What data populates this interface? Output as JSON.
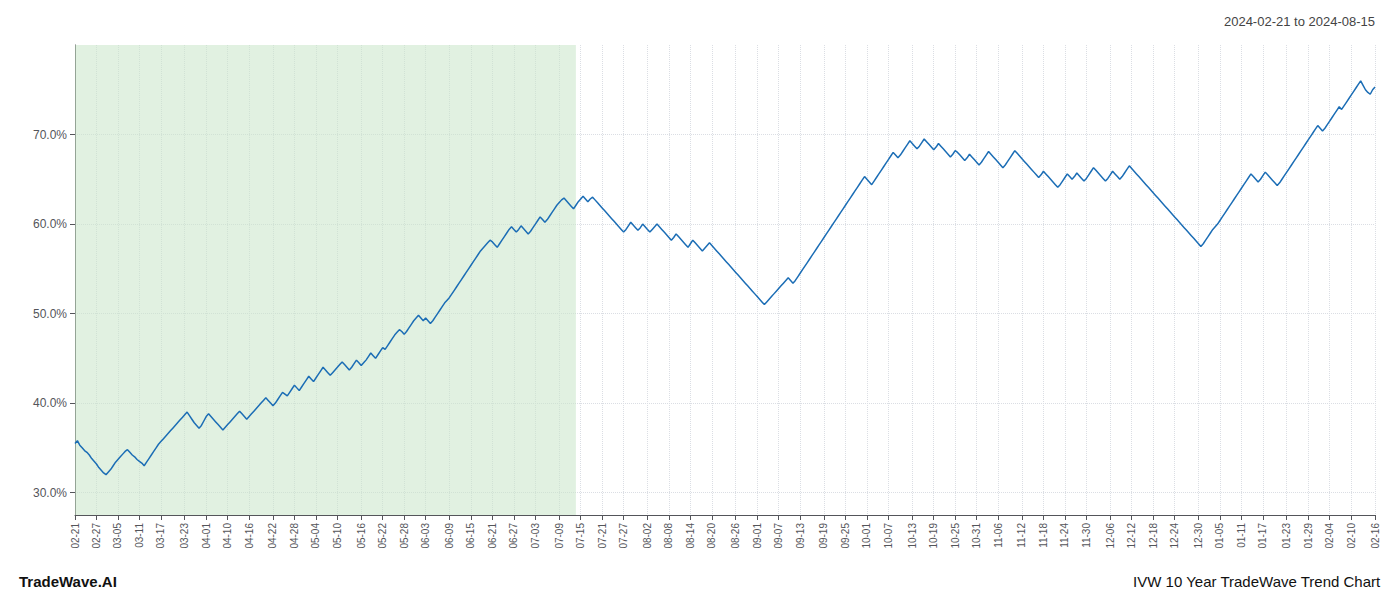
{
  "chart_data": {
    "type": "line",
    "title": "IVW 10 Year TradeWave Trend Chart",
    "subtitle": "2024-02-21 to 2024-08-15",
    "annotations": [
      "TradeWave.AI"
    ],
    "color": "#1b6db5",
    "grid": true,
    "ylim": [
      27.5,
      80.0
    ],
    "yticks": [
      {
        "value": 30.0,
        "label": "30.0%"
      },
      {
        "value": 40.0,
        "label": "40.0%"
      },
      {
        "value": 50.0,
        "label": "50.0%"
      },
      {
        "value": 60.0,
        "label": "60.0%"
      },
      {
        "value": 70.0,
        "label": "70.0%"
      }
    ],
    "categories": [
      "02-21",
      null,
      null,
      null,
      null,
      null,
      null,
      null,
      null,
      "02-27",
      null,
      null,
      null,
      null,
      null,
      null,
      null,
      null,
      "03-05",
      null,
      null,
      null,
      null,
      null,
      null,
      null,
      null,
      "03-11",
      null,
      null,
      null,
      null,
      null,
      null,
      null,
      null,
      "03-17",
      null,
      null,
      null,
      null,
      null,
      null,
      null,
      null,
      null,
      "03-23",
      null,
      null,
      null,
      null,
      null,
      null,
      null,
      null,
      "04-01",
      null,
      null,
      null,
      null,
      null,
      null,
      null,
      null,
      "04-10",
      null,
      null,
      null,
      null,
      null,
      null,
      null,
      null,
      "04-16",
      null,
      null,
      null,
      null,
      null,
      null,
      null,
      null,
      null,
      "04-22",
      null,
      null,
      null,
      null,
      null,
      null,
      null,
      null,
      "04-28",
      null,
      null,
      null,
      null,
      null,
      null,
      null,
      null,
      "05-04",
      null,
      null,
      null,
      null,
      null,
      null,
      null,
      null,
      "05-10",
      null,
      null,
      null,
      null,
      null,
      null,
      null,
      null,
      null,
      "05-16",
      null,
      null,
      null,
      null,
      null,
      null,
      null,
      null,
      "05-22",
      null,
      null,
      null,
      null,
      null,
      null,
      null,
      null,
      "05-28",
      null,
      null,
      null,
      null,
      null,
      null,
      null,
      null,
      "06-03",
      null,
      null,
      null,
      null,
      null,
      null,
      null,
      null,
      null,
      "06-09",
      null,
      null,
      null,
      null,
      null,
      null,
      null,
      null,
      "06-15",
      null,
      null,
      null,
      null,
      null,
      null,
      null,
      null,
      "06-21",
      null,
      null,
      null,
      null,
      null,
      null,
      null,
      null,
      "06-27",
      null,
      null,
      null,
      null,
      null,
      null,
      null,
      null,
      "07-03",
      null,
      null,
      null,
      null,
      null,
      null,
      null,
      null,
      null,
      "07-09",
      null,
      null,
      null,
      null,
      null,
      null,
      null,
      null,
      "07-15",
      null,
      null,
      null,
      null,
      null,
      null,
      null,
      null,
      "07-21",
      null,
      null,
      null,
      null,
      null,
      null,
      null,
      null,
      "07-27",
      null,
      null,
      null,
      null,
      null,
      null,
      null,
      null,
      null,
      "08-02",
      null,
      null,
      null,
      null,
      null,
      null,
      null,
      null,
      "08-08",
      null,
      null,
      null,
      null,
      null,
      null,
      null,
      null,
      "08-14",
      null,
      null,
      null,
      null,
      null,
      null,
      null,
      null,
      "08-20",
      null,
      null,
      null,
      null,
      null,
      null,
      null,
      null,
      null,
      "08-26",
      null,
      null,
      null,
      null,
      null,
      null,
      null,
      null,
      "09-01",
      null,
      null,
      null,
      null,
      null,
      null,
      null,
      null,
      "09-07",
      null,
      null,
      null,
      null,
      null,
      null,
      null,
      null,
      "09-13",
      null,
      null,
      null,
      null,
      null,
      null,
      null,
      null,
      null,
      "09-19",
      null,
      null,
      null,
      null,
      null,
      null,
      null,
      null,
      "09-25",
      null,
      null,
      null,
      null,
      null,
      null,
      null,
      null,
      "10-01",
      null,
      null,
      null,
      null,
      null,
      null,
      null,
      null,
      "10-07",
      null,
      null,
      null,
      null,
      null,
      null,
      null,
      null,
      null,
      "10-13",
      null,
      null,
      null,
      null,
      null,
      null,
      null,
      null,
      "10-19",
      null,
      null,
      null,
      null,
      null,
      null,
      null,
      null,
      "10-25",
      null,
      null,
      null,
      null,
      null,
      null,
      null,
      null,
      "10-31",
      null,
      null,
      null,
      null,
      null,
      null,
      null,
      null,
      "11-06",
      null,
      null,
      null,
      null,
      null,
      null,
      null,
      null,
      null,
      "11-12",
      null,
      null,
      null,
      null,
      null,
      null,
      null,
      null,
      "11-18",
      null,
      null,
      null,
      null,
      null,
      null,
      null,
      null,
      "11-24",
      null,
      null,
      null,
      null,
      null,
      null,
      null,
      null,
      "11-30",
      null,
      null,
      null,
      null,
      null,
      null,
      null,
      null,
      null,
      "12-06",
      null,
      null,
      null,
      null,
      null,
      null,
      null,
      null,
      "12-12",
      null,
      null,
      null,
      null,
      null,
      null,
      null,
      null,
      "12-18",
      null,
      null,
      null,
      null,
      null,
      null,
      null,
      null,
      "12-24",
      null,
      null,
      null,
      null,
      null,
      null,
      null,
      null,
      null,
      "12-30",
      null,
      null,
      null,
      null,
      null,
      null,
      null,
      null,
      "01-05",
      null,
      null,
      null,
      null,
      null,
      null,
      null,
      null,
      "01-11",
      null,
      null,
      null,
      null,
      null,
      null,
      null,
      null,
      "01-17",
      null,
      null,
      null,
      null,
      null,
      null,
      null,
      null,
      null,
      "01-23",
      null,
      null,
      null,
      null,
      null,
      null,
      null,
      null,
      "01-29",
      null,
      null,
      null,
      null,
      null,
      null,
      null,
      null,
      "02-04",
      null,
      null,
      null,
      null,
      null,
      null,
      null,
      null,
      "02-10",
      null,
      null,
      null,
      null,
      null,
      null,
      null,
      null,
      null,
      "02-16"
    ],
    "values": [
      35.5,
      35.8,
      35.3,
      35.0,
      34.7,
      34.5,
      34.2,
      33.8,
      33.5,
      33.2,
      32.8,
      32.5,
      32.2,
      32.0,
      32.3,
      32.6,
      33.0,
      33.4,
      33.7,
      34.0,
      34.3,
      34.6,
      34.8,
      34.5,
      34.2,
      34.0,
      33.7,
      33.5,
      33.3,
      33.0,
      33.4,
      33.8,
      34.2,
      34.6,
      35.0,
      35.4,
      35.7,
      36.0,
      36.3,
      36.6,
      36.9,
      37.2,
      37.5,
      37.8,
      38.1,
      38.4,
      38.7,
      39.0,
      38.6,
      38.2,
      37.8,
      37.5,
      37.2,
      37.5,
      38.0,
      38.5,
      38.8,
      38.5,
      38.2,
      37.9,
      37.6,
      37.3,
      37.0,
      37.3,
      37.6,
      37.9,
      38.2,
      38.5,
      38.8,
      39.1,
      38.8,
      38.5,
      38.2,
      38.5,
      38.8,
      39.1,
      39.4,
      39.7,
      40.0,
      40.3,
      40.6,
      40.3,
      40.0,
      39.7,
      40.0,
      40.4,
      40.8,
      41.2,
      41.0,
      40.8,
      41.2,
      41.6,
      42.0,
      41.7,
      41.4,
      41.8,
      42.2,
      42.6,
      43.0,
      42.7,
      42.4,
      42.8,
      43.2,
      43.6,
      44.0,
      43.7,
      43.4,
      43.1,
      43.4,
      43.7,
      44.0,
      44.3,
      44.6,
      44.3,
      44.0,
      43.7,
      44.0,
      44.4,
      44.8,
      44.5,
      44.2,
      44.5,
      44.8,
      45.2,
      45.6,
      45.3,
      45.0,
      45.4,
      45.8,
      46.2,
      46.0,
      46.4,
      46.8,
      47.2,
      47.6,
      47.9,
      48.2,
      48.0,
      47.7,
      48.0,
      48.4,
      48.8,
      49.2,
      49.5,
      49.8,
      49.5,
      49.2,
      49.5,
      49.2,
      48.9,
      49.2,
      49.6,
      50.0,
      50.4,
      50.8,
      51.2,
      51.5,
      51.8,
      52.2,
      52.6,
      53.0,
      53.4,
      53.8,
      54.2,
      54.6,
      55.0,
      55.4,
      55.8,
      56.2,
      56.6,
      57.0,
      57.3,
      57.6,
      57.9,
      58.2,
      58.0,
      57.7,
      57.4,
      57.8,
      58.2,
      58.6,
      59.0,
      59.4,
      59.7,
      59.4,
      59.1,
      59.4,
      59.8,
      59.5,
      59.2,
      58.9,
      59.2,
      59.6,
      60.0,
      60.4,
      60.8,
      60.5,
      60.2,
      60.5,
      60.9,
      61.3,
      61.7,
      62.1,
      62.4,
      62.7,
      62.9,
      62.6,
      62.3,
      62.0,
      61.7,
      62.1,
      62.5,
      62.8,
      63.1,
      62.8,
      62.5,
      62.8,
      63.0,
      62.7,
      62.4,
      62.1,
      61.8,
      61.5,
      61.2,
      60.9,
      60.6,
      60.3,
      60.0,
      59.7,
      59.4,
      59.1,
      59.4,
      59.8,
      60.2,
      59.9,
      59.6,
      59.3,
      59.6,
      60.0,
      59.7,
      59.4,
      59.1,
      59.4,
      59.7,
      60.0,
      59.7,
      59.4,
      59.1,
      58.8,
      58.5,
      58.2,
      58.5,
      58.9,
      58.6,
      58.3,
      58.0,
      57.7,
      57.4,
      57.8,
      58.2,
      57.9,
      57.6,
      57.3,
      57.0,
      57.3,
      57.6,
      57.9,
      57.6,
      57.3,
      57.0,
      56.7,
      56.4,
      56.1,
      55.8,
      55.5,
      55.2,
      54.9,
      54.6,
      54.3,
      54.0,
      53.7,
      53.4,
      53.1,
      52.8,
      52.5,
      52.2,
      51.9,
      51.6,
      51.3,
      51.0,
      51.3,
      51.6,
      51.9,
      52.2,
      52.5,
      52.8,
      53.1,
      53.4,
      53.7,
      54.0,
      53.7,
      53.4,
      53.7,
      54.1,
      54.5,
      54.9,
      55.3,
      55.7,
      56.1,
      56.5,
      56.9,
      57.3,
      57.7,
      58.1,
      58.5,
      58.9,
      59.3,
      59.7,
      60.1,
      60.5,
      60.9,
      61.3,
      61.7,
      62.1,
      62.5,
      62.9,
      63.3,
      63.7,
      64.1,
      64.5,
      64.9,
      65.3,
      65.0,
      64.7,
      64.4,
      64.8,
      65.2,
      65.6,
      66.0,
      66.4,
      66.8,
      67.2,
      67.6,
      68.0,
      67.7,
      67.4,
      67.7,
      68.1,
      68.5,
      68.9,
      69.3,
      69.0,
      68.7,
      68.4,
      68.7,
      69.1,
      69.5,
      69.2,
      68.9,
      68.6,
      68.3,
      68.6,
      69.0,
      68.7,
      68.4,
      68.1,
      67.8,
      67.5,
      67.8,
      68.2,
      68.0,
      67.7,
      67.4,
      67.1,
      67.4,
      67.8,
      67.5,
      67.2,
      66.9,
      66.6,
      66.9,
      67.3,
      67.7,
      68.1,
      67.8,
      67.5,
      67.2,
      66.9,
      66.6,
      66.3,
      66.6,
      67.0,
      67.4,
      67.8,
      68.2,
      67.9,
      67.6,
      67.3,
      67.0,
      66.7,
      66.4,
      66.1,
      65.8,
      65.5,
      65.2,
      65.5,
      65.9,
      65.6,
      65.3,
      65.0,
      64.7,
      64.4,
      64.1,
      64.4,
      64.8,
      65.2,
      65.6,
      65.3,
      65.0,
      65.3,
      65.7,
      65.4,
      65.1,
      64.8,
      65.1,
      65.5,
      65.9,
      66.3,
      66.0,
      65.7,
      65.4,
      65.1,
      64.8,
      65.1,
      65.5,
      65.9,
      65.6,
      65.3,
      65.0,
      65.3,
      65.7,
      66.1,
      66.5,
      66.2,
      65.9,
      65.6,
      65.3,
      65.0,
      64.7,
      64.4,
      64.1,
      63.8,
      63.5,
      63.2,
      62.9,
      62.6,
      62.3,
      62.0,
      61.7,
      61.4,
      61.1,
      60.8,
      60.5,
      60.2,
      59.9,
      59.6,
      59.3,
      59.0,
      58.7,
      58.4,
      58.1,
      57.8,
      57.5,
      57.8,
      58.2,
      58.6,
      59.0,
      59.4,
      59.7,
      60.0,
      60.4,
      60.8,
      61.2,
      61.6,
      62.0,
      62.4,
      62.8,
      63.2,
      63.6,
      64.0,
      64.4,
      64.8,
      65.2,
      65.6,
      65.3,
      65.0,
      64.7,
      65.0,
      65.4,
      65.8,
      65.5,
      65.2,
      64.9,
      64.6,
      64.3,
      64.6,
      65.0,
      65.4,
      65.8,
      66.2,
      66.6,
      67.0,
      67.4,
      67.8,
      68.2,
      68.6,
      69.0,
      69.4,
      69.8,
      70.2,
      70.6,
      71.0,
      70.7,
      70.4,
      70.7,
      71.1,
      71.5,
      71.9,
      72.3,
      72.7,
      73.1,
      72.8,
      73.2,
      73.6,
      74.0,
      74.4,
      74.8,
      75.2,
      75.6,
      76.0,
      75.5,
      75.0,
      74.7,
      74.5,
      75.0,
      75.3
    ]
  }
}
